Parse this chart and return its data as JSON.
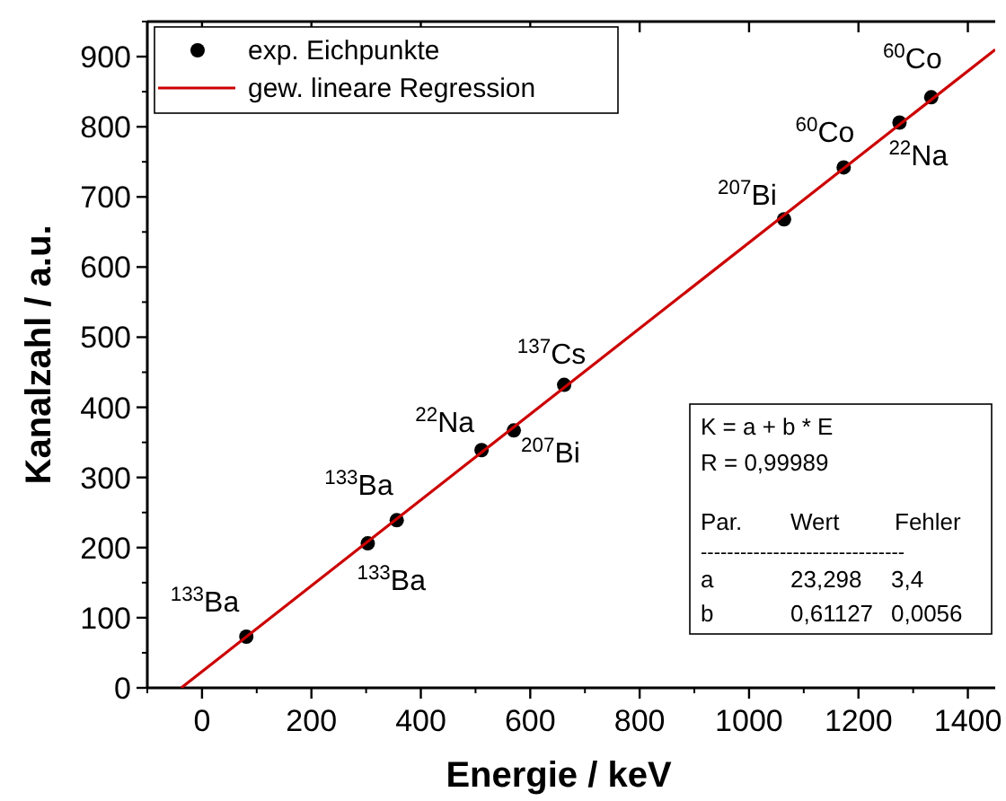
{
  "chart_data": {
    "type": "scatter",
    "xlabel": "Energie / keV",
    "ylabel": "Kanalzahl / a.u.",
    "xlim": [
      -100,
      1450
    ],
    "ylim": [
      0,
      950
    ],
    "xticks": [
      0,
      200,
      400,
      600,
      800,
      1000,
      1200,
      1400
    ],
    "yticks": [
      0,
      100,
      200,
      300,
      400,
      500,
      600,
      700,
      800,
      900
    ],
    "legend": "top left",
    "grid": false,
    "series": [
      {
        "name": "exp. Eichpunkte",
        "marker": "circle",
        "color": "#000000",
        "x": [
          81,
          303,
          356,
          511,
          570,
          662,
          1064,
          1173,
          1275,
          1333
        ],
        "values": [
          73,
          206,
          239,
          339,
          367,
          432,
          668,
          742,
          806,
          842
        ]
      },
      {
        "name": "gew. lineare Regression",
        "type": "line",
        "color": "#cc0000",
        "x": [
          -38,
          1450
        ],
        "values": [
          0,
          910
        ]
      }
    ],
    "annotations": [
      {
        "text": "$^{133}$Ba",
        "x": 81,
        "y": 73
      },
      {
        "text": "$^{133}$Ba",
        "x": 303,
        "y": 206
      },
      {
        "text": "$^{133}$Ba",
        "x": 356,
        "y": 239
      },
      {
        "text": "$^{22}$Na",
        "x": 511,
        "y": 339
      },
      {
        "text": "$^{207}$Bi",
        "x": 570,
        "y": 367
      },
      {
        "text": "$^{137}$Cs",
        "x": 662,
        "y": 432
      },
      {
        "text": "$^{207}$Bi",
        "x": 1064,
        "y": 668
      },
      {
        "text": "$^{60}$Co",
        "x": 1173,
        "y": 742
      },
      {
        "text": "$^{22}$Na",
        "x": 1275,
        "y": 806
      },
      {
        "text": "$^{60}$Co",
        "x": 1333,
        "y": 842
      },
      "K = a + b * E",
      "R = 0,99989",
      "Par.",
      "Wert",
      "Fehler",
      "-------------------------------",
      "a",
      "23,298",
      "3,4",
      "b",
      "0,61127",
      "0,0056"
    ]
  }
}
